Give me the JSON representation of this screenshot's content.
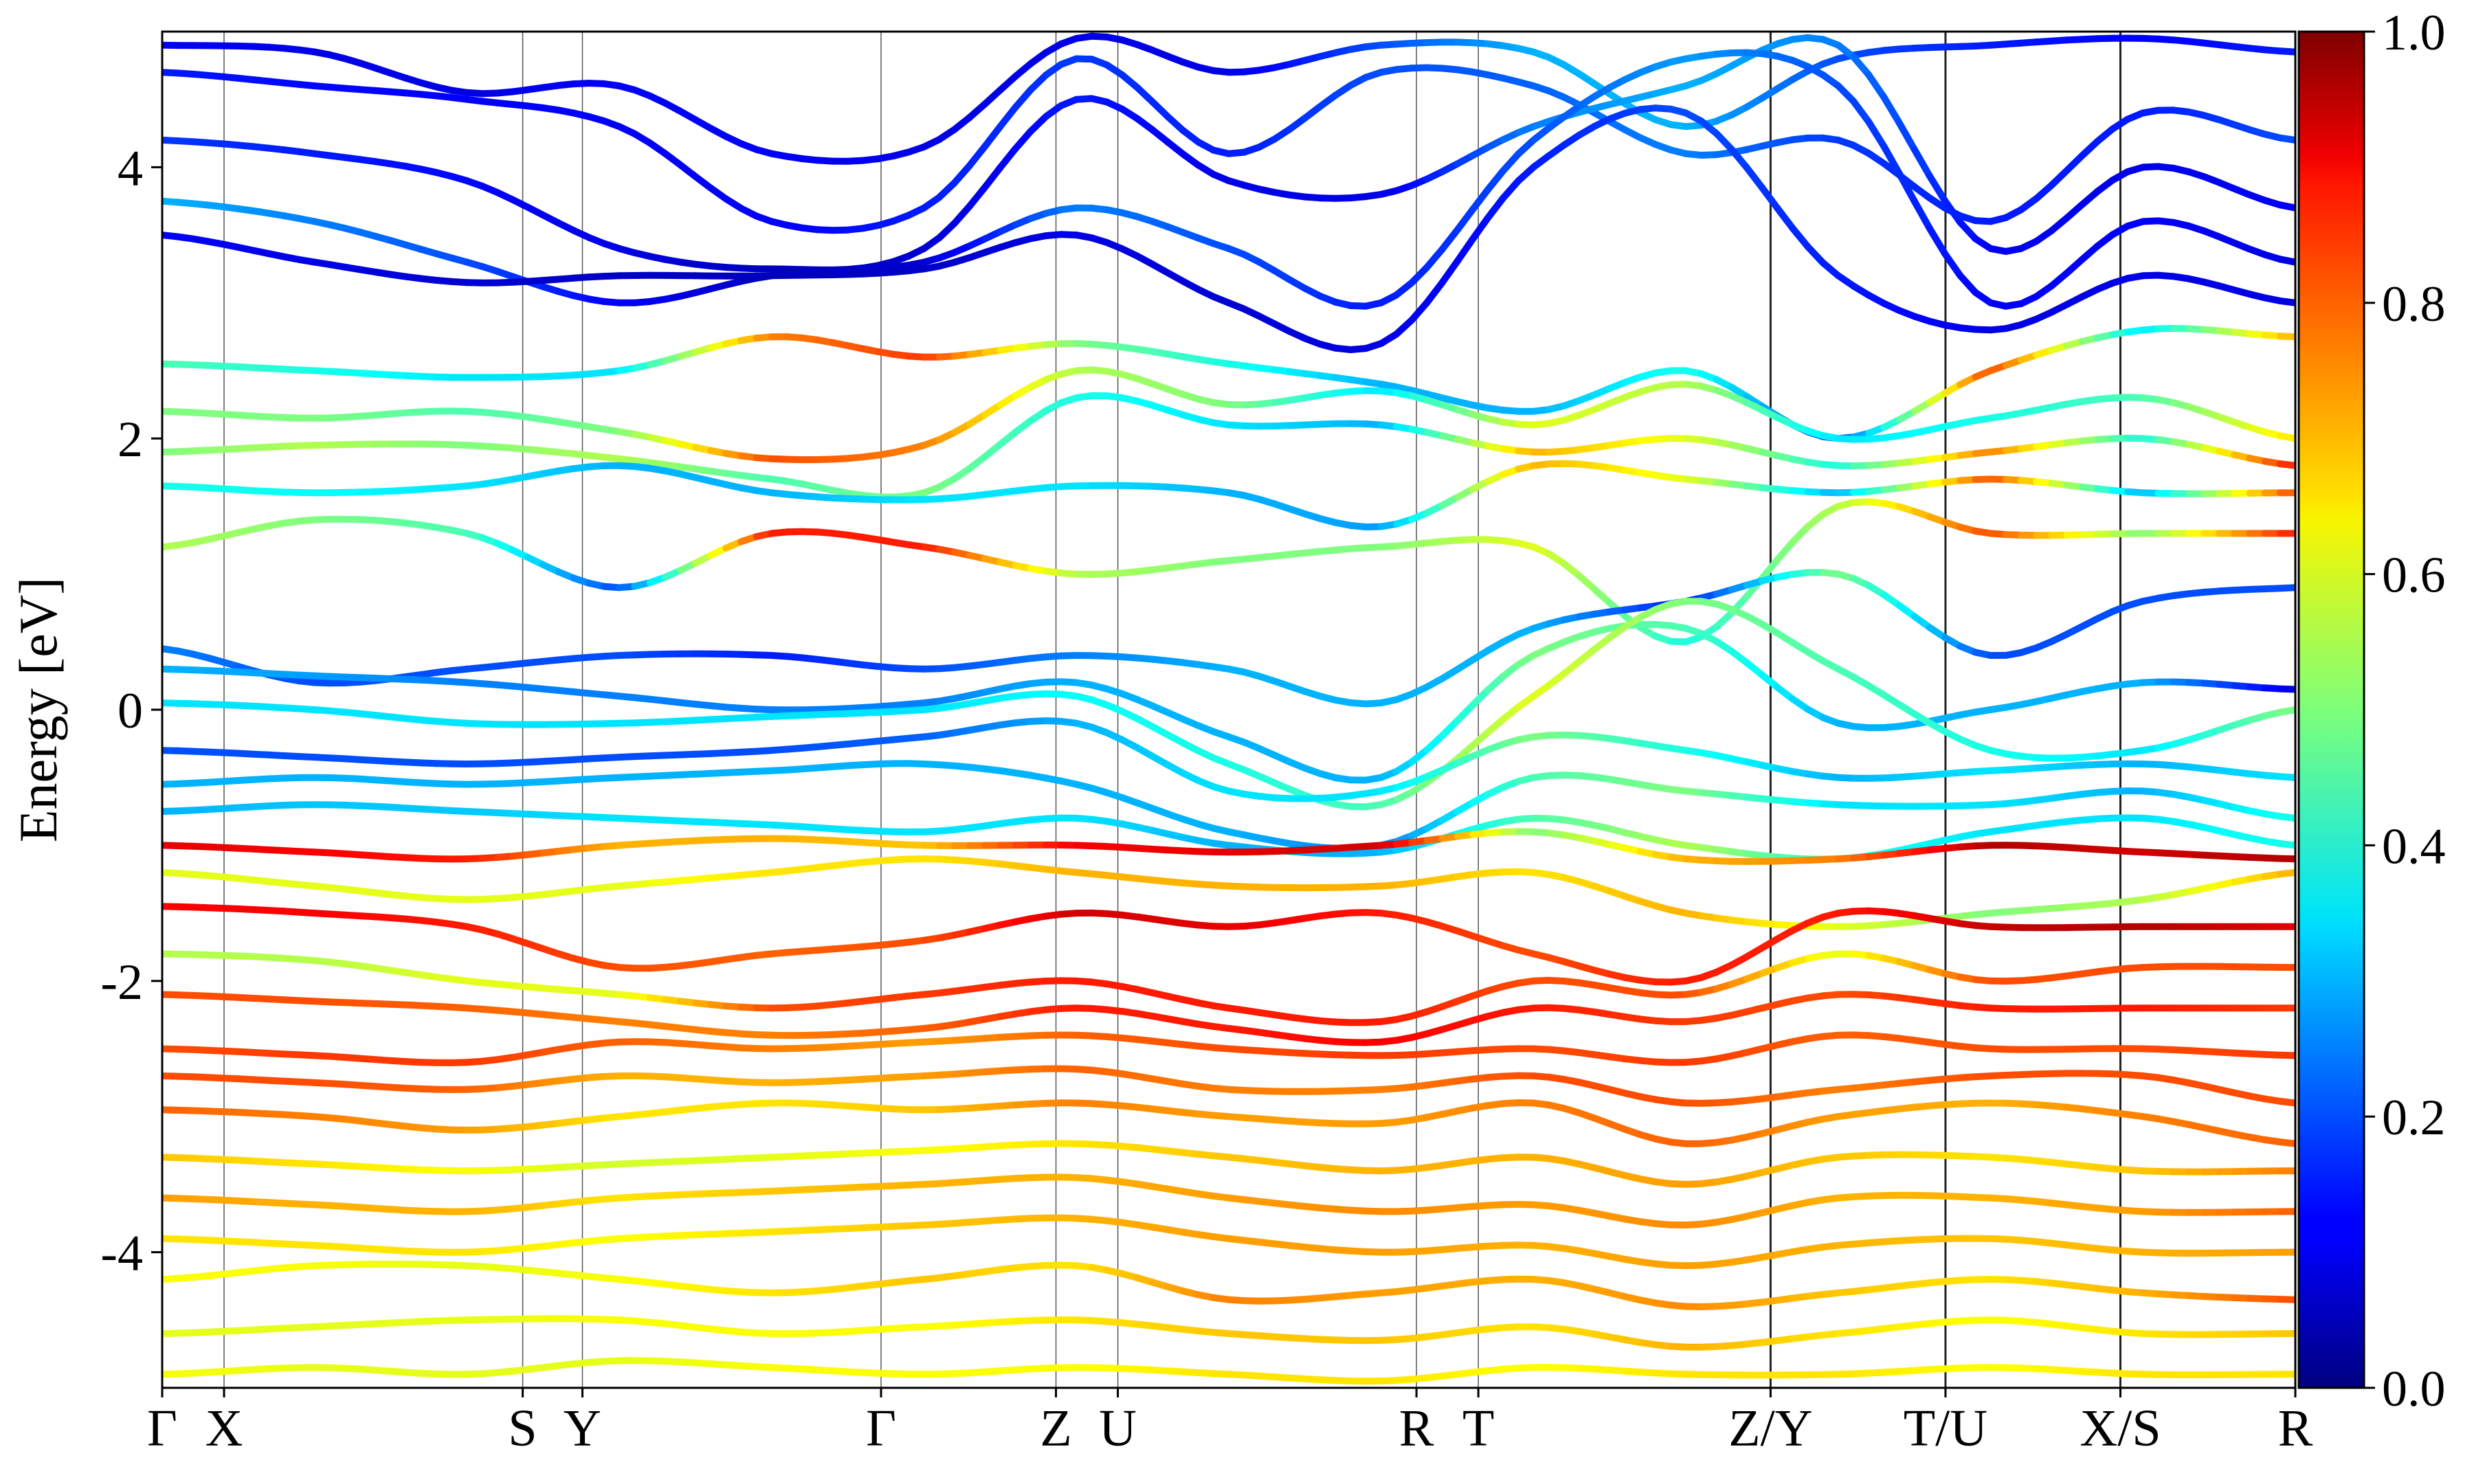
{
  "chart_data": {
    "type": "line",
    "title": "",
    "xlabel": "",
    "ylabel": "Energy [eV]",
    "ylim": [
      -5,
      5
    ],
    "yticks": [
      -4,
      -2,
      0,
      2,
      4
    ],
    "ytick_labels": [
      "-4",
      "-2",
      "0",
      "2",
      "4"
    ],
    "grid": false,
    "kpath": [
      {
        "label": "Γ",
        "x": 0.0
      },
      {
        "label": "X",
        "x": 0.029
      },
      {
        "label": "S",
        "x": 0.169
      },
      {
        "label": "Y",
        "x": 0.197
      },
      {
        "label": "Γ",
        "x": 0.337
      },
      {
        "label": "Z",
        "x": 0.419
      },
      {
        "label": "U",
        "x": 0.448
      },
      {
        "label": "R",
        "x": 0.588
      },
      {
        "label": "T",
        "x": 0.617
      },
      {
        "label": "Z/Y",
        "x": 0.754
      },
      {
        "label": "T/U",
        "x": 0.836
      },
      {
        "label": "X/S",
        "x": 0.918
      },
      {
        "label": "R",
        "x": 1.0
      }
    ],
    "path_breaks": [
      0.754,
      0.836,
      0.918
    ],
    "colorbar": {
      "colormap": "jet",
      "range": [
        0.0,
        1.0
      ],
      "ticks": [
        0.0,
        0.2,
        0.4,
        0.6,
        0.8,
        1.0
      ],
      "tick_labels": [
        "0.0",
        "0.2",
        "0.4",
        "0.6",
        "0.8",
        "1.0"
      ]
    },
    "bands": [
      {
        "e": [
          4.9,
          4.85,
          4.55,
          4.6,
          4.1,
          4.15,
          4.95,
          4.7,
          4.9,
          4.85,
          4.3,
          4.8,
          4.9,
          4.95,
          4.85
        ],
        "w": [
          0.12,
          0.1,
          0.1,
          0.12,
          0.12,
          0.1,
          0.1,
          0.1,
          0.2,
          0.3,
          0.3,
          0.2,
          0.15,
          0.12,
          0.15
        ]
      },
      {
        "e": [
          4.7,
          4.6,
          4.5,
          4.3,
          3.6,
          3.7,
          4.8,
          4.1,
          4.7,
          4.6,
          4.1,
          4.2,
          3.6,
          4.4,
          4.2
        ],
        "w": [
          0.15,
          0.13,
          0.12,
          0.12,
          0.12,
          0.15,
          0.18,
          0.15,
          0.2,
          0.22,
          0.25,
          0.18,
          0.15,
          0.15,
          0.2
        ]
      },
      {
        "e": [
          4.2,
          4.1,
          3.9,
          3.4,
          3.25,
          3.4,
          4.5,
          3.9,
          3.8,
          4.3,
          4.6,
          4.9,
          3.4,
          4.0,
          3.7
        ],
        "w": [
          0.18,
          0.15,
          0.13,
          0.1,
          0.06,
          0.08,
          0.15,
          0.1,
          0.1,
          0.25,
          0.3,
          0.25,
          0.12,
          0.1,
          0.12
        ]
      },
      {
        "e": [
          3.75,
          3.6,
          3.3,
          3.0,
          3.2,
          3.3,
          3.7,
          3.4,
          3.0,
          4.2,
          4.8,
          4.6,
          3.0,
          3.6,
          3.3
        ],
        "w": [
          0.3,
          0.25,
          0.2,
          0.12,
          0.06,
          0.08,
          0.25,
          0.2,
          0.15,
          0.2,
          0.28,
          0.2,
          0.12,
          0.12,
          0.1
        ]
      },
      {
        "e": [
          3.5,
          3.3,
          3.15,
          3.2,
          3.2,
          3.25,
          3.5,
          3.0,
          2.7,
          4.0,
          4.4,
          3.2,
          2.8,
          3.2,
          3.0
        ],
        "w": [
          0.12,
          0.1,
          0.08,
          0.07,
          0.06,
          0.07,
          0.1,
          0.08,
          0.1,
          0.15,
          0.2,
          0.15,
          0.1,
          0.1,
          0.1
        ]
      },
      {
        "e": [
          2.55,
          2.5,
          2.45,
          2.5,
          2.75,
          2.6,
          2.7,
          2.55,
          2.4,
          2.2,
          2.5,
          2.0,
          2.5,
          2.8,
          2.75
        ],
        "w": [
          0.45,
          0.4,
          0.35,
          0.35,
          0.75,
          0.82,
          0.5,
          0.4,
          0.3,
          0.3,
          0.4,
          0.2,
          0.8,
          0.35,
          0.7
        ]
      },
      {
        "e": [
          2.2,
          2.15,
          2.2,
          2.05,
          1.85,
          1.95,
          2.5,
          2.25,
          2.35,
          2.1,
          2.4,
          2.0,
          2.15,
          2.3,
          2.0
        ],
        "w": [
          0.5,
          0.5,
          0.45,
          0.5,
          0.8,
          0.75,
          0.55,
          0.5,
          0.35,
          0.6,
          0.55,
          0.35,
          0.4,
          0.45,
          0.65
        ]
      },
      {
        "e": [
          1.9,
          1.95,
          1.95,
          1.85,
          1.7,
          1.6,
          2.3,
          2.1,
          2.1,
          1.9,
          2.0,
          1.8,
          1.9,
          2.0,
          1.8
        ],
        "w": [
          0.5,
          0.55,
          0.5,
          0.55,
          0.45,
          0.5,
          0.4,
          0.35,
          0.3,
          0.7,
          0.6,
          0.4,
          0.75,
          0.4,
          0.85
        ]
      },
      {
        "e": [
          1.65,
          1.6,
          1.65,
          1.8,
          1.6,
          1.55,
          1.65,
          1.6,
          1.35,
          1.8,
          1.7,
          1.6,
          1.7,
          1.6,
          1.6
        ],
        "w": [
          0.4,
          0.38,
          0.35,
          0.3,
          0.3,
          0.35,
          0.35,
          0.3,
          0.28,
          0.7,
          0.6,
          0.3,
          0.8,
          0.3,
          0.8
        ]
      },
      {
        "e": [
          1.2,
          1.4,
          1.3,
          0.9,
          1.3,
          1.2,
          1.0,
          1.1,
          1.2,
          1.2,
          0.5,
          1.5,
          1.3,
          1.3,
          1.3
        ],
        "w": [
          0.55,
          0.5,
          0.45,
          0.2,
          0.85,
          0.85,
          0.55,
          0.5,
          0.5,
          0.6,
          0.4,
          0.55,
          0.8,
          0.5,
          0.85
        ]
      },
      {
        "e": [
          0.45,
          0.2,
          0.3,
          0.4,
          0.4,
          0.3,
          0.4,
          0.3,
          0.05,
          0.6,
          0.8,
          1.0,
          0.4,
          0.8,
          0.9
        ],
        "w": [
          0.25,
          0.2,
          0.2,
          0.2,
          0.15,
          0.2,
          0.25,
          0.3,
          0.3,
          0.3,
          0.15,
          0.5,
          0.2,
          0.2,
          0.2
        ]
      },
      {
        "e": [
          0.3,
          0.25,
          0.2,
          0.1,
          0.0,
          0.05,
          0.2,
          -0.2,
          -0.5,
          0.4,
          0.6,
          -0.1,
          0.0,
          0.2,
          0.15
        ],
        "w": [
          0.3,
          0.28,
          0.25,
          0.25,
          0.25,
          0.25,
          0.3,
          0.3,
          0.3,
          0.5,
          0.45,
          0.3,
          0.3,
          0.3,
          0.1
        ]
      },
      {
        "e": [
          0.05,
          0.0,
          -0.1,
          -0.1,
          -0.05,
          0.0,
          0.1,
          -0.4,
          -0.7,
          0.1,
          0.8,
          0.3,
          -0.3,
          -0.3,
          0.0
        ],
        "w": [
          0.35,
          0.35,
          0.35,
          0.35,
          0.35,
          0.35,
          0.38,
          0.4,
          0.45,
          0.6,
          0.5,
          0.45,
          0.4,
          0.35,
          0.5
        ]
      },
      {
        "e": [
          -0.3,
          -0.35,
          -0.4,
          -0.35,
          -0.3,
          -0.2,
          -0.1,
          -0.6,
          -0.6,
          -0.2,
          -0.3,
          -0.5,
          -0.45,
          -0.4,
          -0.5
        ],
        "w": [
          0.2,
          0.2,
          0.2,
          0.2,
          0.2,
          0.22,
          0.3,
          0.35,
          0.35,
          0.5,
          0.4,
          0.3,
          0.35,
          0.3,
          0.35
        ]
      },
      {
        "e": [
          -0.55,
          -0.5,
          -0.55,
          -0.5,
          -0.45,
          -0.4,
          -0.55,
          -0.9,
          -1.0,
          -0.5,
          -0.6,
          -0.7,
          -0.7,
          -0.6,
          -0.8
        ],
        "w": [
          0.3,
          0.3,
          0.3,
          0.3,
          0.3,
          0.3,
          0.3,
          0.3,
          0.25,
          0.45,
          0.5,
          0.35,
          0.35,
          0.3,
          0.4
        ]
      },
      {
        "e": [
          -0.75,
          -0.7,
          -0.75,
          -0.8,
          -0.85,
          -0.9,
          -0.8,
          -1.0,
          -1.05,
          -0.8,
          -1.0,
          -1.1,
          -0.9,
          -0.8,
          -1.0
        ],
        "w": [
          0.3,
          0.32,
          0.32,
          0.35,
          0.35,
          0.35,
          0.35,
          0.3,
          0.3,
          0.45,
          0.55,
          0.4,
          0.35,
          0.35,
          0.4
        ]
      },
      {
        "e": [
          -1.0,
          -1.05,
          -1.1,
          -1.0,
          -0.95,
          -1.0,
          -1.0,
          -1.05,
          -1.0,
          -0.9,
          -1.1,
          -1.1,
          -1.0,
          -1.05,
          -1.1
        ],
        "w": [
          0.9,
          0.88,
          0.85,
          0.7,
          0.7,
          0.68,
          0.88,
          0.9,
          0.92,
          0.5,
          0.7,
          0.75,
          0.95,
          0.92,
          0.95
        ]
      },
      {
        "e": [
          -1.2,
          -1.3,
          -1.4,
          -1.3,
          -1.2,
          -1.1,
          -1.2,
          -1.3,
          -1.3,
          -1.2,
          -1.5,
          -1.6,
          -1.5,
          -1.4,
          -1.2
        ],
        "w": [
          0.6,
          0.6,
          0.6,
          0.6,
          0.65,
          0.65,
          0.7,
          0.7,
          0.7,
          0.65,
          0.7,
          0.6,
          0.5,
          0.55,
          0.7
        ]
      },
      {
        "e": [
          -1.45,
          -1.5,
          -1.6,
          -1.9,
          -1.8,
          -1.7,
          -1.5,
          -1.6,
          -1.5,
          -1.8,
          -2.0,
          -1.5,
          -1.6,
          -1.6,
          -1.6
        ],
        "w": [
          0.88,
          0.88,
          0.85,
          0.8,
          0.78,
          0.8,
          0.92,
          0.9,
          0.85,
          0.8,
          0.85,
          0.85,
          0.93,
          0.95,
          0.9
        ]
      },
      {
        "e": [
          -1.8,
          -1.85,
          -2.0,
          -2.1,
          -2.2,
          -2.1,
          -2.0,
          -2.2,
          -2.3,
          -2.0,
          -2.1,
          -1.8,
          -2.0,
          -1.9,
          -1.9
        ],
        "w": [
          0.55,
          0.55,
          0.6,
          0.6,
          0.8,
          0.82,
          0.85,
          0.85,
          0.85,
          0.8,
          0.8,
          0.6,
          0.8,
          0.8,
          0.8
        ]
      },
      {
        "e": [
          -2.1,
          -2.15,
          -2.2,
          -2.3,
          -2.4,
          -2.35,
          -2.2,
          -2.35,
          -2.45,
          -2.2,
          -2.3,
          -2.1,
          -2.2,
          -2.2,
          -2.2
        ],
        "w": [
          0.8,
          0.8,
          0.78,
          0.75,
          0.75,
          0.78,
          0.85,
          0.85,
          0.88,
          0.85,
          0.82,
          0.8,
          0.85,
          0.85,
          0.82
        ]
      },
      {
        "e": [
          -2.5,
          -2.55,
          -2.6,
          -2.45,
          -2.5,
          -2.45,
          -2.4,
          -2.5,
          -2.55,
          -2.5,
          -2.6,
          -2.4,
          -2.5,
          -2.5,
          -2.55
        ],
        "w": [
          0.8,
          0.82,
          0.82,
          0.78,
          0.75,
          0.72,
          0.78,
          0.8,
          0.82,
          0.8,
          0.82,
          0.78,
          0.8,
          0.8,
          0.82
        ]
      },
      {
        "e": [
          -2.7,
          -2.75,
          -2.8,
          -2.7,
          -2.75,
          -2.7,
          -2.65,
          -2.8,
          -2.8,
          -2.7,
          -2.9,
          -2.8,
          -2.7,
          -2.7,
          -2.9
        ],
        "w": [
          0.8,
          0.8,
          0.78,
          0.7,
          0.7,
          0.72,
          0.78,
          0.75,
          0.75,
          0.8,
          0.8,
          0.75,
          0.8,
          0.8,
          0.8
        ]
      },
      {
        "e": [
          -2.95,
          -3.0,
          -3.1,
          -3.0,
          -2.9,
          -2.95,
          -2.9,
          -3.0,
          -3.05,
          -2.9,
          -3.2,
          -3.0,
          -2.9,
          -3.0,
          -3.2
        ],
        "w": [
          0.78,
          0.75,
          0.72,
          0.65,
          0.65,
          0.68,
          0.75,
          0.72,
          0.72,
          0.75,
          0.78,
          0.72,
          0.7,
          0.75,
          0.78
        ]
      },
      {
        "e": [
          -3.3,
          -3.35,
          -3.4,
          -3.35,
          -3.3,
          -3.25,
          -3.2,
          -3.3,
          -3.4,
          -3.3,
          -3.5,
          -3.3,
          -3.3,
          -3.4,
          -3.4
        ],
        "w": [
          0.68,
          0.65,
          0.62,
          0.58,
          0.6,
          0.62,
          0.65,
          0.68,
          0.7,
          0.7,
          0.72,
          0.68,
          0.65,
          0.68,
          0.75
        ]
      },
      {
        "e": [
          -3.6,
          -3.65,
          -3.7,
          -3.6,
          -3.55,
          -3.5,
          -3.45,
          -3.6,
          -3.7,
          -3.65,
          -3.8,
          -3.6,
          -3.6,
          -3.7,
          -3.7
        ],
        "w": [
          0.72,
          0.7,
          0.7,
          0.65,
          0.68,
          0.7,
          0.7,
          0.72,
          0.74,
          0.72,
          0.74,
          0.7,
          0.7,
          0.72,
          0.78
        ]
      },
      {
        "e": [
          -3.9,
          -3.95,
          -4.0,
          -3.9,
          -3.85,
          -3.8,
          -3.75,
          -3.9,
          -4.0,
          -3.95,
          -4.1,
          -3.95,
          -3.9,
          -4.0,
          -4.0
        ],
        "w": [
          0.65,
          0.65,
          0.65,
          0.62,
          0.65,
          0.68,
          0.7,
          0.72,
          0.72,
          0.7,
          0.72,
          0.7,
          0.68,
          0.7,
          0.72
        ]
      },
      {
        "e": [
          -4.2,
          -4.1,
          -4.1,
          -4.2,
          -4.3,
          -4.2,
          -4.1,
          -4.35,
          -4.3,
          -4.2,
          -4.4,
          -4.3,
          -4.2,
          -4.3,
          -4.35
        ],
        "w": [
          0.62,
          0.62,
          0.6,
          0.62,
          0.65,
          0.68,
          0.65,
          0.75,
          0.72,
          0.7,
          0.74,
          0.68,
          0.65,
          0.7,
          0.8
        ]
      },
      {
        "e": [
          -4.6,
          -4.55,
          -4.5,
          -4.5,
          -4.6,
          -4.55,
          -4.5,
          -4.6,
          -4.65,
          -4.55,
          -4.7,
          -4.6,
          -4.5,
          -4.6,
          -4.6
        ],
        "w": [
          0.6,
          0.6,
          0.6,
          0.62,
          0.62,
          0.62,
          0.65,
          0.68,
          0.68,
          0.65,
          0.7,
          0.65,
          0.62,
          0.65,
          0.68
        ]
      },
      {
        "e": [
          -4.9,
          -4.85,
          -4.9,
          -4.8,
          -4.85,
          -4.9,
          -4.85,
          -4.9,
          -4.95,
          -4.85,
          -4.9,
          -4.9,
          -4.85,
          -4.9,
          -4.9
        ],
        "w": [
          0.62,
          0.6,
          0.6,
          0.6,
          0.62,
          0.62,
          0.62,
          0.65,
          0.65,
          0.62,
          0.65,
          0.65,
          0.62,
          0.65,
          0.65
        ]
      }
    ]
  }
}
